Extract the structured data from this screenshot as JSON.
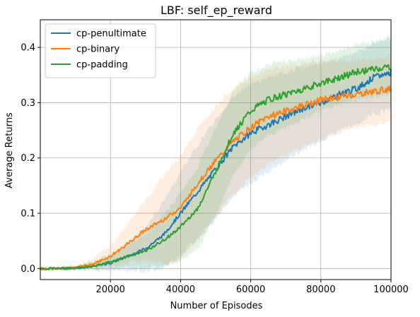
{
  "chart_data": {
    "type": "line",
    "title": "LBF: self_ep_reward",
    "xlabel": "Number of Episodes",
    "ylabel": "Average Returns",
    "xlim": [
      0,
      100000
    ],
    "ylim": [
      -0.02,
      0.45
    ],
    "xticks": [
      20000,
      40000,
      60000,
      80000,
      100000
    ],
    "yticks": [
      0.0,
      0.1,
      0.2,
      0.3,
      0.4
    ],
    "xtick_labels": [
      "20000",
      "40000",
      "60000",
      "80000",
      "100000"
    ],
    "ytick_labels": [
      "0.0",
      "0.1",
      "0.2",
      "0.3",
      "0.4"
    ],
    "grid": true,
    "legend_position": "top-left",
    "shaded_band": true,
    "x": [
      0,
      5000,
      10000,
      15000,
      20000,
      25000,
      30000,
      35000,
      40000,
      45000,
      50000,
      55000,
      60000,
      65000,
      70000,
      75000,
      80000,
      85000,
      90000,
      95000,
      100000
    ],
    "series": [
      {
        "name": "cp-penultimate",
        "color": "#1f77b4",
        "values": [
          0.0,
          0.0,
          0.001,
          0.004,
          0.01,
          0.022,
          0.036,
          0.06,
          0.1,
          0.14,
          0.18,
          0.22,
          0.245,
          0.26,
          0.275,
          0.29,
          0.3,
          0.315,
          0.325,
          0.345,
          0.355
        ],
        "band": [
          0.0,
          0.0,
          0.002,
          0.006,
          0.012,
          0.025,
          0.04,
          0.06,
          0.075,
          0.085,
          0.09,
          0.09,
          0.09,
          0.085,
          0.08,
          0.075,
          0.07,
          0.065,
          0.065,
          0.065,
          0.065
        ]
      },
      {
        "name": "cp-binary",
        "color": "#ff7f0e",
        "values": [
          0.0,
          0.0,
          0.002,
          0.008,
          0.022,
          0.045,
          0.07,
          0.088,
          0.11,
          0.155,
          0.195,
          0.23,
          0.255,
          0.275,
          0.285,
          0.295,
          0.305,
          0.31,
          0.315,
          0.32,
          0.325
        ],
        "band": [
          0.0,
          0.001,
          0.004,
          0.01,
          0.02,
          0.035,
          0.055,
          0.08,
          0.095,
          0.1,
          0.1,
          0.095,
          0.09,
          0.085,
          0.08,
          0.075,
          0.07,
          0.065,
          0.06,
          0.06,
          0.06
        ]
      },
      {
        "name": "cp-padding",
        "color": "#2ca02c",
        "values": [
          0.0,
          0.0,
          0.001,
          0.004,
          0.012,
          0.022,
          0.032,
          0.05,
          0.075,
          0.11,
          0.175,
          0.245,
          0.285,
          0.305,
          0.315,
          0.325,
          0.335,
          0.345,
          0.355,
          0.36,
          0.365
        ],
        "band": [
          0.0,
          0.001,
          0.003,
          0.007,
          0.013,
          0.02,
          0.03,
          0.045,
          0.06,
          0.075,
          0.08,
          0.075,
          0.07,
          0.065,
          0.06,
          0.055,
          0.05,
          0.05,
          0.05,
          0.05,
          0.05
        ]
      }
    ]
  }
}
